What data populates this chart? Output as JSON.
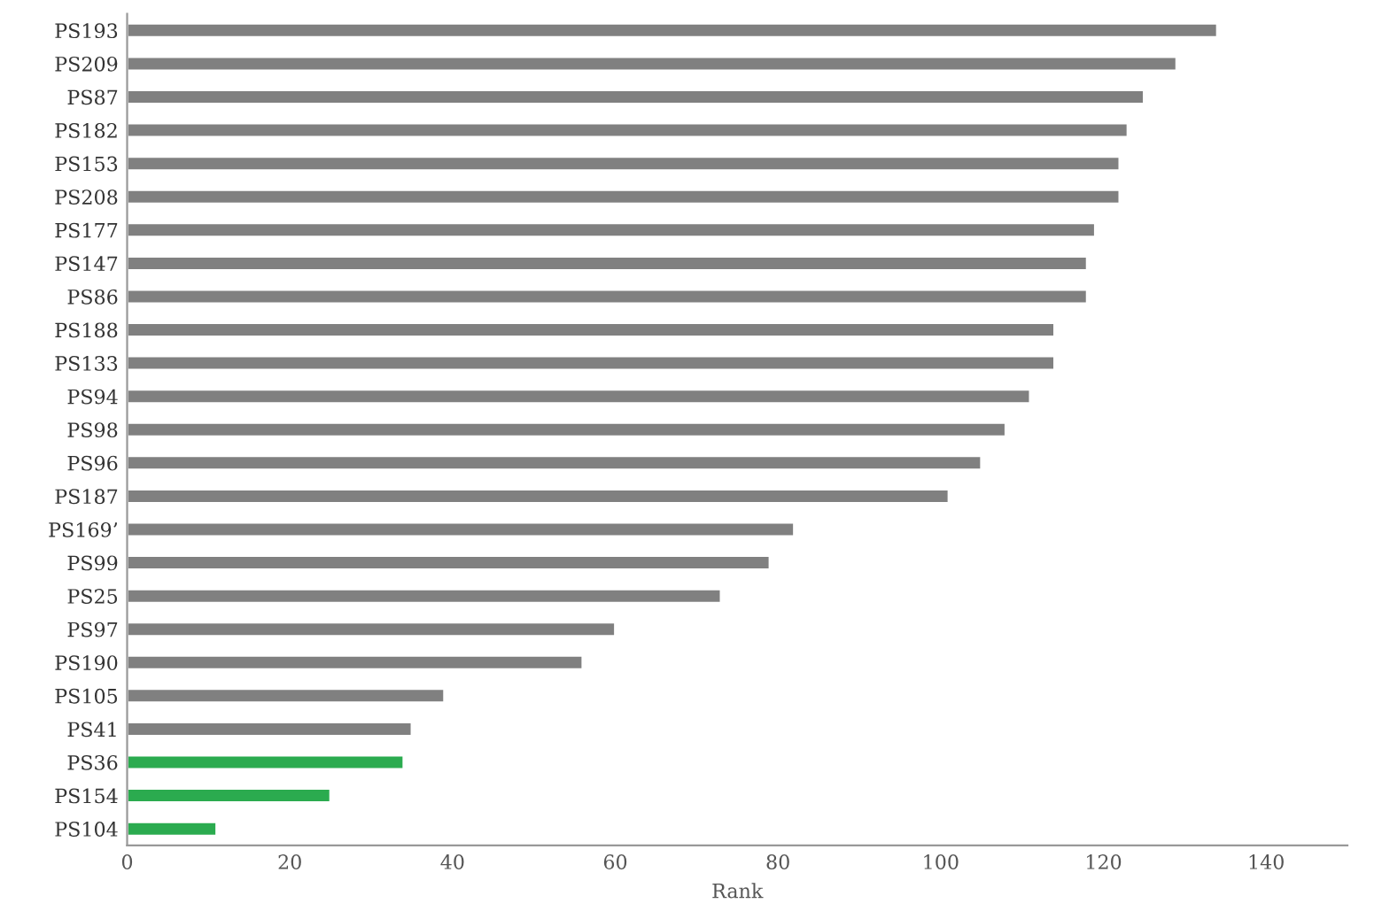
{
  "chart_data": {
    "type": "bar",
    "orientation": "horizontal",
    "xlabel": "Rank",
    "categories": [
      "PS193",
      "PS209",
      "PS87",
      "PS182",
      "PS153",
      "PS208",
      "PS177",
      "PS147",
      "PS86",
      "PS188",
      "PS133",
      "PS94",
      "PS98",
      "PS96",
      "PS187",
      "PS169’",
      "PS99",
      "PS25",
      "PS97",
      "PS190",
      "PS105",
      "PS41",
      "PS36",
      "PS154",
      "PS104"
    ],
    "values": [
      134,
      129,
      125,
      123,
      122,
      122,
      119,
      118,
      118,
      114,
      114,
      111,
      108,
      105,
      101,
      82,
      79,
      73,
      60,
      56,
      39,
      35,
      34,
      25,
      11
    ],
    "colors": [
      "#808080",
      "#808080",
      "#808080",
      "#808080",
      "#808080",
      "#808080",
      "#808080",
      "#808080",
      "#808080",
      "#808080",
      "#808080",
      "#808080",
      "#808080",
      "#808080",
      "#808080",
      "#808080",
      "#808080",
      "#808080",
      "#808080",
      "#808080",
      "#808080",
      "#808080",
      "#2bab4f",
      "#2bab4f",
      "#2bab4f"
    ],
    "xlim": [
      0,
      150
    ],
    "xticks": [
      0,
      20,
      40,
      60,
      80,
      100,
      120,
      140
    ],
    "grid": false,
    "legend": false
  }
}
